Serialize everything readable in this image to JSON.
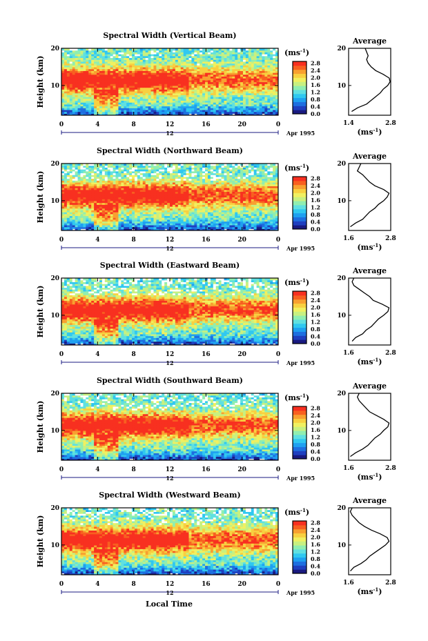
{
  "xlabel": "Local Time",
  "unit_label": "(ms",
  "unit_exp": "-1",
  "unit_close": ")",
  "date_label": "Apr 1995",
  "day_label": "12",
  "ylabel": "Height (km)",
  "average_title": "Average",
  "colors": {
    "scale": [
      "#1a1a80",
      "#1f3fbf",
      "#1e6fe0",
      "#1fa0f0",
      "#30c8f0",
      "#60e0e0",
      "#90eeb0",
      "#c8f080",
      "#f0f060",
      "#f8d040",
      "#f8a030",
      "#f86020",
      "#f83020"
    ]
  },
  "chart_data": [
    {
      "type": "heatmap",
      "title": "Spectral Width (Vertical Beam)",
      "x_ticks": [
        "0",
        "4",
        "8",
        "12",
        "16",
        "20",
        "0"
      ],
      "y_ticks": [
        "20",
        "10"
      ],
      "xlim": [
        0,
        24
      ],
      "ylim": [
        2,
        20
      ],
      "colorbar_ticks": [
        "2.8",
        "2.4",
        "2.0",
        "1.6",
        "1.2",
        "0.8",
        "0.4",
        "0.0"
      ],
      "average": {
        "x_ticks": [
          "1.4",
          "2.8"
        ],
        "y_ticks": [
          "20",
          "10"
        ],
        "xlim": [
          1.4,
          2.8
        ],
        "profile": [
          [
            3,
            1.5
          ],
          [
            4,
            1.7
          ],
          [
            5,
            2.0
          ],
          [
            6,
            2.15
          ],
          [
            7,
            2.3
          ],
          [
            8,
            2.45
          ],
          [
            9,
            2.55
          ],
          [
            10,
            2.7
          ],
          [
            11,
            2.78
          ],
          [
            12,
            2.75
          ],
          [
            13,
            2.55
          ],
          [
            14,
            2.3
          ],
          [
            15,
            2.15
          ],
          [
            16,
            2.05
          ],
          [
            17,
            2.0
          ],
          [
            18,
            2.05
          ],
          [
            19,
            2.0
          ],
          [
            20,
            1.95
          ]
        ]
      }
    },
    {
      "type": "heatmap",
      "title": "Spectral Width (Northward Beam)",
      "x_ticks": [
        "0",
        "4",
        "8",
        "12",
        "16",
        "20",
        "0"
      ],
      "y_ticks": [
        "20",
        "10"
      ],
      "xlim": [
        0,
        24
      ],
      "ylim": [
        2,
        20
      ],
      "colorbar_ticks": [
        "2.8",
        "2.4",
        "2.0",
        "1.6",
        "1.2",
        "0.8",
        "0.4",
        "0.0"
      ],
      "average": {
        "x_ticks": [
          "1.6",
          "2.8"
        ],
        "y_ticks": [
          "20",
          "10"
        ],
        "xlim": [
          1.6,
          2.8
        ],
        "profile": [
          [
            3,
            1.65
          ],
          [
            4,
            1.8
          ],
          [
            5,
            2.0
          ],
          [
            6,
            2.1
          ],
          [
            7,
            2.2
          ],
          [
            8,
            2.35
          ],
          [
            9,
            2.45
          ],
          [
            10,
            2.6
          ],
          [
            11,
            2.7
          ],
          [
            12,
            2.75
          ],
          [
            13,
            2.6
          ],
          [
            14,
            2.35
          ],
          [
            15,
            2.2
          ],
          [
            16,
            2.1
          ],
          [
            17,
            2.0
          ],
          [
            18,
            1.85
          ],
          [
            19,
            1.9
          ],
          [
            20,
            1.95
          ]
        ]
      }
    },
    {
      "type": "heatmap",
      "title": "Spectral Width (Eastward Beam)",
      "x_ticks": [
        "0",
        "4",
        "8",
        "12",
        "16",
        "20",
        "0"
      ],
      "y_ticks": [
        "20",
        "10"
      ],
      "xlim": [
        0,
        24
      ],
      "ylim": [
        2,
        20
      ],
      "colorbar_ticks": [
        "2.8",
        "2.4",
        "2.0",
        "1.6",
        "1.2",
        "0.8",
        "0.4",
        "0.0"
      ],
      "average": {
        "x_ticks": [
          "1.6",
          "2.8"
        ],
        "y_ticks": [
          "20",
          "10"
        ],
        "xlim": [
          1.6,
          2.8
        ],
        "profile": [
          [
            3,
            1.7
          ],
          [
            4,
            1.8
          ],
          [
            5,
            2.0
          ],
          [
            6,
            2.1
          ],
          [
            7,
            2.25
          ],
          [
            8,
            2.35
          ],
          [
            9,
            2.45
          ],
          [
            10,
            2.6
          ],
          [
            11,
            2.72
          ],
          [
            12,
            2.75
          ],
          [
            13,
            2.55
          ],
          [
            14,
            2.3
          ],
          [
            15,
            2.2
          ],
          [
            16,
            2.05
          ],
          [
            17,
            1.9
          ],
          [
            18,
            1.75
          ],
          [
            19,
            1.7
          ],
          [
            20,
            1.75
          ]
        ]
      }
    },
    {
      "type": "heatmap",
      "title": "Spectral Width (Southward Beam)",
      "x_ticks": [
        "0",
        "4",
        "8",
        "12",
        "16",
        "20",
        "0"
      ],
      "y_ticks": [
        "20",
        "10"
      ],
      "xlim": [
        0,
        24
      ],
      "ylim": [
        2,
        20
      ],
      "colorbar_ticks": [
        "2.8",
        "2.4",
        "2.0",
        "1.6",
        "1.2",
        "0.8",
        "0.4",
        "0.0"
      ],
      "average": {
        "x_ticks": [
          "1.6",
          "2.8"
        ],
        "y_ticks": [
          "20",
          "10"
        ],
        "xlim": [
          1.6,
          2.8
        ],
        "profile": [
          [
            3,
            1.65
          ],
          [
            4,
            1.8
          ],
          [
            5,
            2.0
          ],
          [
            6,
            2.15
          ],
          [
            7,
            2.25
          ],
          [
            8,
            2.35
          ],
          [
            9,
            2.5
          ],
          [
            10,
            2.6
          ],
          [
            11,
            2.72
          ],
          [
            12,
            2.75
          ],
          [
            13,
            2.6
          ],
          [
            14,
            2.4
          ],
          [
            15,
            2.2
          ],
          [
            16,
            2.1
          ],
          [
            17,
            2.0
          ],
          [
            18,
            1.9
          ],
          [
            19,
            1.85
          ],
          [
            20,
            1.9
          ]
        ]
      }
    },
    {
      "type": "heatmap",
      "title": "Spectral Width (Westward Beam)",
      "x_ticks": [
        "0",
        "4",
        "8",
        "12",
        "16",
        "20",
        "0"
      ],
      "y_ticks": [
        "20",
        "10"
      ],
      "xlim": [
        0,
        24
      ],
      "ylim": [
        2,
        20
      ],
      "colorbar_ticks": [
        "2.8",
        "2.4",
        "2.0",
        "1.6",
        "1.2",
        "0.8",
        "0.4",
        "0.0"
      ],
      "average": {
        "x_ticks": [
          "1.6",
          "2.8"
        ],
        "y_ticks": [
          "20",
          "10"
        ],
        "xlim": [
          1.6,
          2.8
        ],
        "profile": [
          [
            3,
            1.65
          ],
          [
            4,
            1.75
          ],
          [
            5,
            1.95
          ],
          [
            6,
            2.1
          ],
          [
            7,
            2.2
          ],
          [
            8,
            2.35
          ],
          [
            9,
            2.5
          ],
          [
            10,
            2.65
          ],
          [
            11,
            2.75
          ],
          [
            12,
            2.7
          ],
          [
            13,
            2.5
          ],
          [
            14,
            2.25
          ],
          [
            15,
            2.05
          ],
          [
            16,
            1.9
          ],
          [
            17,
            1.8
          ],
          [
            18,
            1.7
          ],
          [
            19,
            1.65
          ],
          [
            20,
            1.7
          ]
        ]
      }
    }
  ]
}
